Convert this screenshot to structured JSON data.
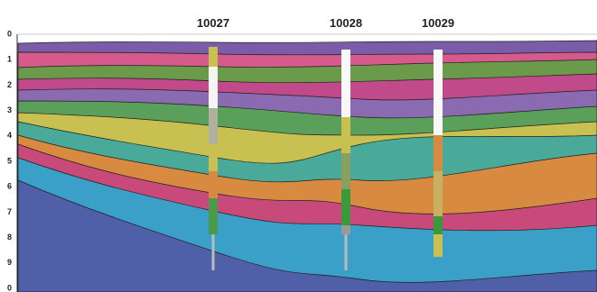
{
  "figure": {
    "wells": [
      "10027",
      "10028",
      "10029"
    ],
    "depth_axis": [
      "0",
      "1",
      "2",
      "3",
      "4",
      "5",
      "6",
      "7",
      "8",
      "9",
      "0"
    ]
  }
}
